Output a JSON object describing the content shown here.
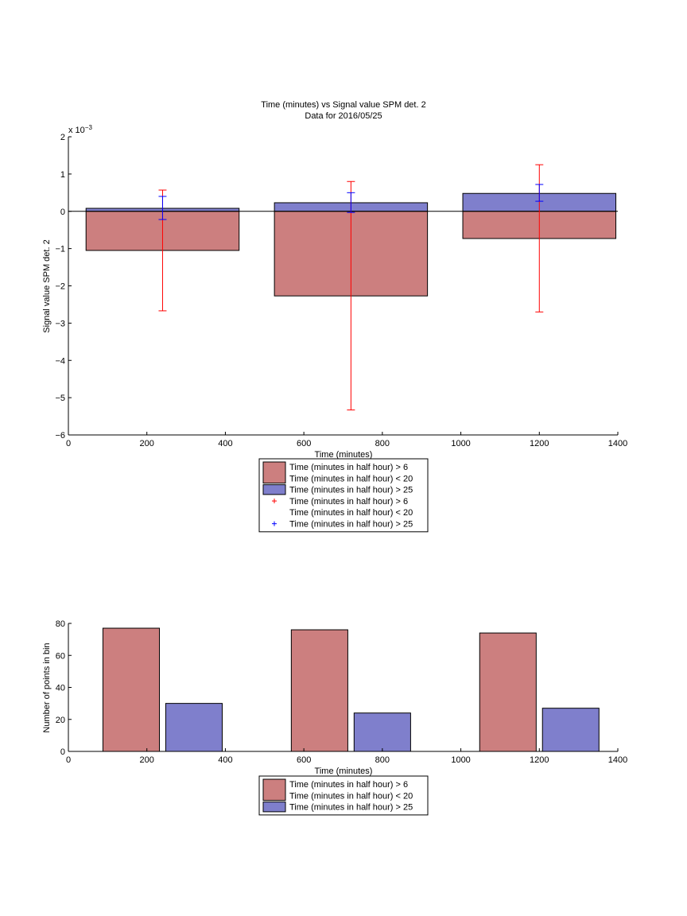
{
  "chart_data": [
    {
      "type": "bar",
      "title_line1": "Time (minutes) vs Signal value SPM det. 2",
      "title_line2": "Data for 2016/05/25",
      "xlabel": "Time (minutes)",
      "ylabel": "Signal value SPM det. 2",
      "y_exponent_base": "x 10",
      "y_exponent_power": "−3",
      "xlim": [
        0,
        1400
      ],
      "ylim": [
        -6,
        2
      ],
      "xticks": [
        0,
        200,
        400,
        600,
        800,
        1000,
        1200,
        1400
      ],
      "xtick_labels": [
        "0",
        "200",
        "400",
        "600",
        "800",
        "1000",
        "1200",
        "1400"
      ],
      "yticks": [
        -6,
        -5,
        -4,
        -3,
        -2,
        -1,
        0,
        1,
        2
      ],
      "ytick_labels": [
        "−6",
        "−5",
        "−4",
        "−3",
        "−2",
        "−1",
        "0",
        "1",
        "2"
      ],
      "bars": [
        {
          "x": 240,
          "width": 390,
          "red": -1.05,
          "blue": 0.08
        },
        {
          "x": 720,
          "width": 390,
          "red": -2.27,
          "blue": 0.23
        },
        {
          "x": 1200,
          "width": 390,
          "red": -0.73,
          "blue": 0.48
        }
      ],
      "error_bars": {
        "red": [
          {
            "x": 240,
            "low": -2.67,
            "high": 0.57
          },
          {
            "x": 720,
            "low": -5.33,
            "high": 0.8
          },
          {
            "x": 1200,
            "low": -2.7,
            "high": 1.25
          }
        ],
        "blue": [
          {
            "x": 240,
            "low": -0.22,
            "high": 0.4
          },
          {
            "x": 720,
            "low": -0.03,
            "high": 0.5
          },
          {
            "x": 1200,
            "low": 0.27,
            "high": 0.72
          }
        ]
      },
      "zero_line": true,
      "legend": [
        {
          "kind": "patch",
          "color": "#cc7f7f",
          "lines": [
            "Time (minutes in half hour) > 6",
            "Time (minutes in half hour) < 20"
          ]
        },
        {
          "kind": "patch",
          "color": "#7f7fcc",
          "lines": [
            "Time (minutes in half hour) > 25"
          ]
        },
        {
          "kind": "marker",
          "color": "#ff0000",
          "lines": [
            "Time (minutes in half hour) > 6",
            "Time (minutes in half hour) < 20"
          ]
        },
        {
          "kind": "marker",
          "color": "#0000ff",
          "lines": [
            "Time (minutes in half hour) > 25"
          ]
        }
      ]
    },
    {
      "type": "bar",
      "xlabel": "Time (minutes)",
      "ylabel": "Number of points in bin",
      "xlim": [
        0,
        1400
      ],
      "ylim": [
        0,
        80
      ],
      "xticks": [
        0,
        200,
        400,
        600,
        800,
        1000,
        1200,
        1400
      ],
      "xtick_labels": [
        "0",
        "200",
        "400",
        "600",
        "800",
        "1000",
        "1200",
        "1400"
      ],
      "yticks": [
        0,
        20,
        40,
        60,
        80
      ],
      "ytick_labels": [
        "0",
        "20",
        "40",
        "60",
        "80"
      ],
      "bars": [
        {
          "x": 160,
          "width": 144,
          "value": 77,
          "series": "red"
        },
        {
          "x": 320,
          "width": 144,
          "value": 30,
          "series": "blue"
        },
        {
          "x": 640,
          "width": 144,
          "value": 76,
          "series": "red"
        },
        {
          "x": 800,
          "width": 144,
          "value": 24,
          "series": "blue"
        },
        {
          "x": 1120,
          "width": 144,
          "value": 74,
          "series": "red"
        },
        {
          "x": 1280,
          "width": 144,
          "value": 27,
          "series": "blue"
        }
      ],
      "legend": [
        {
          "kind": "patch",
          "color": "#cc7f7f",
          "lines": [
            "Time (minutes in half hour) > 6",
            "Time (minutes in half hour) < 20"
          ]
        },
        {
          "kind": "patch",
          "color": "#7f7fcc",
          "lines": [
            "Time (minutes in half hour) > 25"
          ]
        }
      ]
    }
  ],
  "colors": {
    "red_bar": "#cc7f7f",
    "blue_bar": "#7f7fcc",
    "red_err": "#ff0000",
    "blue_err": "#0000ff"
  }
}
